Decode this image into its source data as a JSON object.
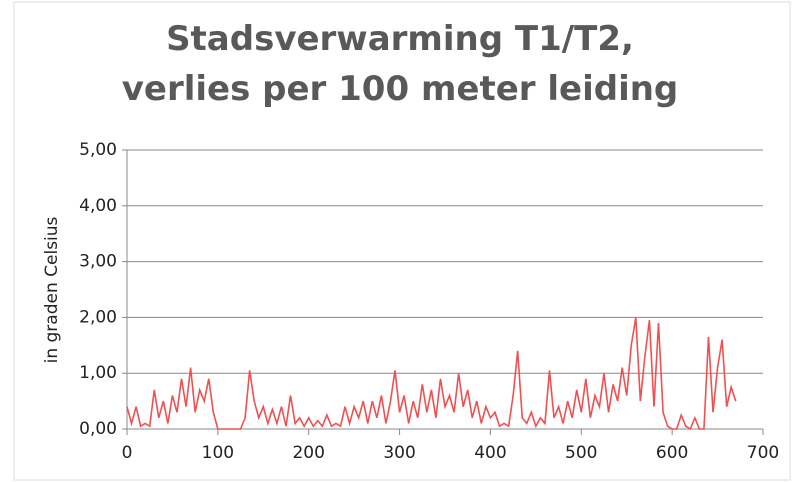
{
  "chart_data": {
    "type": "line",
    "title": "Stadsverwarming T1/T2, verlies per 100 meter leiding",
    "y_label": "in graden Celsius",
    "x": [
      0,
      5,
      10,
      15,
      20,
      25,
      30,
      35,
      40,
      45,
      50,
      55,
      60,
      65,
      70,
      75,
      80,
      85,
      90,
      95,
      100,
      105,
      110,
      115,
      120,
      125,
      130,
      135,
      140,
      145,
      150,
      155,
      160,
      165,
      170,
      175,
      180,
      185,
      190,
      195,
      200,
      205,
      210,
      215,
      220,
      225,
      230,
      235,
      240,
      245,
      250,
      255,
      260,
      265,
      270,
      275,
      280,
      285,
      290,
      295,
      300,
      305,
      310,
      315,
      320,
      325,
      330,
      335,
      340,
      345,
      350,
      355,
      360,
      365,
      370,
      375,
      380,
      385,
      390,
      395,
      400,
      405,
      410,
      415,
      420,
      425,
      430,
      435,
      440,
      445,
      450,
      455,
      460,
      465,
      470,
      475,
      480,
      485,
      490,
      495,
      500,
      505,
      510,
      515,
      520,
      525,
      530,
      535,
      540,
      545,
      550,
      555,
      560,
      565,
      570,
      575,
      580,
      585,
      590,
      595,
      600,
      605,
      610,
      615,
      620,
      625,
      630,
      635,
      640,
      645,
      650,
      655,
      660,
      665,
      670
    ],
    "series": [
      {
        "name": "verlies",
        "color": "#f05050",
        "values": [
          0.4,
          0.1,
          0.4,
          0.05,
          0.1,
          0.05,
          0.7,
          0.2,
          0.5,
          0.1,
          0.6,
          0.3,
          0.9,
          0.4,
          1.1,
          0.3,
          0.7,
          0.5,
          0.9,
          0.3,
          0,
          0,
          0,
          0,
          0,
          0,
          0.2,
          1.05,
          0.5,
          0.2,
          0.4,
          0.1,
          0.35,
          0.1,
          0.4,
          0.05,
          0.6,
          0.1,
          0.2,
          0.05,
          0.2,
          0.05,
          0.15,
          0.05,
          0.25,
          0.05,
          0.1,
          0.05,
          0.4,
          0.1,
          0.4,
          0.2,
          0.5,
          0.1,
          0.5,
          0.2,
          0.6,
          0.1,
          0.5,
          1.05,
          0.3,
          0.6,
          0.1,
          0.5,
          0.2,
          0.8,
          0.3,
          0.7,
          0.2,
          0.9,
          0.4,
          0.6,
          0.3,
          1.0,
          0.4,
          0.7,
          0.2,
          0.5,
          0.1,
          0.4,
          0.2,
          0.3,
          0.05,
          0.1,
          0.05,
          0.6,
          1.4,
          0.2,
          0.1,
          0.3,
          0.05,
          0.2,
          0.1,
          1.05,
          0.2,
          0.4,
          0.1,
          0.5,
          0.2,
          0.7,
          0.3,
          0.9,
          0.2,
          0.6,
          0.4,
          1.0,
          0.3,
          0.8,
          0.5,
          1.1,
          0.6,
          1.5,
          2.0,
          0.5,
          1.3,
          1.95,
          0.4,
          1.9,
          0.3,
          0.05,
          0,
          0,
          0.25,
          0.05,
          0,
          0.2,
          0,
          0,
          1.65,
          0.3,
          1.1,
          1.6,
          0.4,
          0.75,
          0.5
        ]
      }
    ],
    "xlim": [
      0,
      700
    ],
    "xticks": [
      0,
      100,
      200,
      300,
      400,
      500,
      600,
      700
    ],
    "ylim": [
      0,
      5
    ],
    "yticks": [
      {
        "value": 0,
        "label": "0,00"
      },
      {
        "value": 1,
        "label": "1,00"
      },
      {
        "value": 2,
        "label": "2,00"
      },
      {
        "value": 3,
        "label": "3,00"
      },
      {
        "value": 4,
        "label": "4,00"
      },
      {
        "value": 5,
        "label": "5,00"
      }
    ],
    "grid": true
  }
}
